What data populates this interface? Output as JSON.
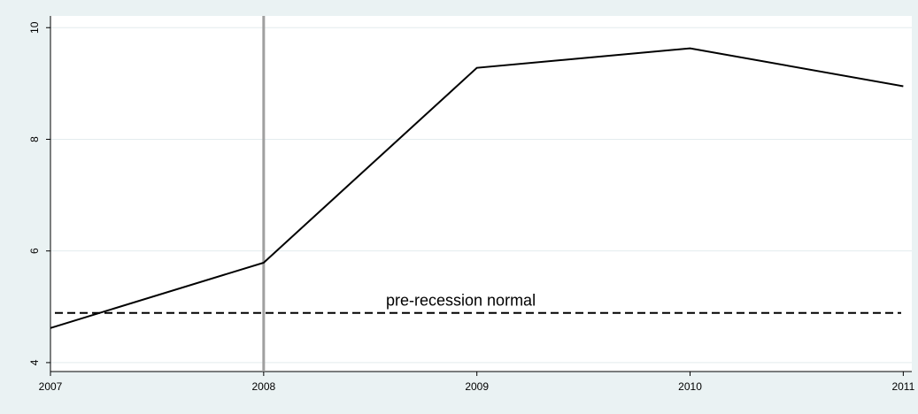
{
  "chart_data": {
    "type": "line",
    "x": [
      2007,
      2008,
      2009,
      2010,
      2011
    ],
    "series": [
      {
        "color": "#000000",
        "values": [
          4.62,
          5.79,
          9.28,
          9.63,
          8.95
        ]
      }
    ],
    "xlim": [
      2007,
      2011.04
    ],
    "xticks": [
      2007,
      2008,
      2009,
      2010,
      2011
    ],
    "ylim": [
      3.84,
      10.21
    ],
    "yticks": [
      4,
      6,
      8,
      10
    ],
    "grid": true,
    "vline": {
      "value": 2008,
      "color": "#a0a0a0"
    },
    "hline": {
      "value": 4.89,
      "label": "pre-recession normal",
      "color": "#000000"
    }
  }
}
